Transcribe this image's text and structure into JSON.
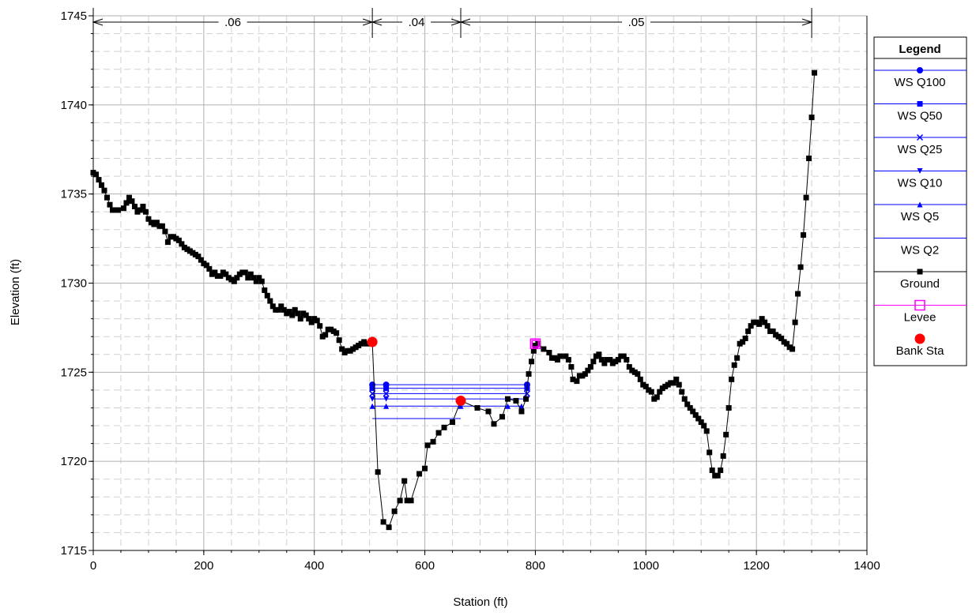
{
  "chart_data": {
    "type": "line",
    "xlabel": "Station (ft)",
    "ylabel": "Elevation (ft)",
    "xlim": [
      0,
      1400
    ],
    "ylim": [
      1715,
      1745
    ],
    "x_ticks": [
      "0",
      "200",
      "400",
      "600",
      "800",
      "1000",
      "1200",
      "1400"
    ],
    "y_ticks": [
      "1715",
      "1720",
      "1725",
      "1730",
      "1735",
      "1740",
      "1745"
    ],
    "grid": true,
    "legend_position": "right",
    "legend_title": "Legend",
    "colors": {
      "water": "#0000ff",
      "ground": "#000000",
      "levee": "#ff00ff",
      "bank": "#ff0000"
    },
    "roughness": [
      {
        "label": ".06",
        "from": 0,
        "to": 505
      },
      {
        "label": ".04",
        "from": 505,
        "to": 665
      },
      {
        "label": ".05",
        "from": 665,
        "to": 1300
      }
    ],
    "series": [
      {
        "name": "WS Q100",
        "marker": "circle",
        "elevation": 1724.3,
        "x": [
          505,
          530,
          785
        ]
      },
      {
        "name": "WS Q50",
        "marker": "square",
        "elevation": 1724.1,
        "x": [
          505,
          530,
          785
        ]
      },
      {
        "name": "WS Q25",
        "marker": "x",
        "elevation": 1723.8,
        "x": [
          505,
          530,
          785
        ]
      },
      {
        "name": "WS Q10",
        "marker": "triangle-down",
        "elevation": 1723.5,
        "x": [
          505,
          530,
          785
        ]
      },
      {
        "name": "WS Q5",
        "marker": "triangle-up",
        "elevation": 1723.1,
        "x": [
          505,
          530,
          665,
          750,
          775
        ]
      },
      {
        "name": "WS Q2",
        "marker": "none",
        "elevation": 1722.4,
        "x": [
          505,
          665
        ]
      },
      {
        "name": "Ground",
        "marker": "square",
        "points": [
          [
            0,
            1736.2
          ],
          [
            5,
            1736.1
          ],
          [
            10,
            1735.8
          ],
          [
            15,
            1735.5
          ],
          [
            20,
            1735.2
          ],
          [
            25,
            1734.8
          ],
          [
            30,
            1734.4
          ],
          [
            35,
            1734.1
          ],
          [
            45,
            1734.1
          ],
          [
            55,
            1734.2
          ],
          [
            60,
            1734.5
          ],
          [
            65,
            1734.8
          ],
          [
            70,
            1734.6
          ],
          [
            75,
            1734.3
          ],
          [
            80,
            1734.0
          ],
          [
            85,
            1734.1
          ],
          [
            90,
            1734.3
          ],
          [
            95,
            1734.0
          ],
          [
            100,
            1733.6
          ],
          [
            105,
            1733.4
          ],
          [
            110,
            1733.3
          ],
          [
            115,
            1733.4
          ],
          [
            120,
            1733.2
          ],
          [
            125,
            1733.2
          ],
          [
            130,
            1732.9
          ],
          [
            135,
            1732.3
          ],
          [
            140,
            1732.6
          ],
          [
            145,
            1732.6
          ],
          [
            150,
            1732.5
          ],
          [
            155,
            1732.4
          ],
          [
            160,
            1732.2
          ],
          [
            165,
            1732.0
          ],
          [
            170,
            1731.9
          ],
          [
            175,
            1731.8
          ],
          [
            180,
            1731.7
          ],
          [
            185,
            1731.6
          ],
          [
            190,
            1731.5
          ],
          [
            195,
            1731.3
          ],
          [
            200,
            1731.1
          ],
          [
            205,
            1731.0
          ],
          [
            210,
            1730.8
          ],
          [
            215,
            1730.5
          ],
          [
            220,
            1730.6
          ],
          [
            225,
            1730.4
          ],
          [
            230,
            1730.4
          ],
          [
            235,
            1730.6
          ],
          [
            240,
            1730.5
          ],
          [
            245,
            1730.3
          ],
          [
            250,
            1730.2
          ],
          [
            255,
            1730.1
          ],
          [
            260,
            1730.3
          ],
          [
            265,
            1730.5
          ],
          [
            270,
            1730.6
          ],
          [
            275,
            1730.6
          ],
          [
            280,
            1730.3
          ],
          [
            285,
            1730.5
          ],
          [
            290,
            1730.3
          ],
          [
            295,
            1730.1
          ],
          [
            300,
            1730.3
          ],
          [
            305,
            1730.1
          ],
          [
            310,
            1729.6
          ],
          [
            315,
            1729.3
          ],
          [
            320,
            1729.0
          ],
          [
            325,
            1728.7
          ],
          [
            330,
            1728.5
          ],
          [
            335,
            1728.5
          ],
          [
            340,
            1728.7
          ],
          [
            345,
            1728.5
          ],
          [
            350,
            1728.3
          ],
          [
            355,
            1728.4
          ],
          [
            360,
            1728.2
          ],
          [
            365,
            1728.5
          ],
          [
            370,
            1728.3
          ],
          [
            375,
            1728.0
          ],
          [
            380,
            1728.3
          ],
          [
            385,
            1728.2
          ],
          [
            390,
            1728.0
          ],
          [
            395,
            1727.8
          ],
          [
            400,
            1728.0
          ],
          [
            405,
            1727.9
          ],
          [
            410,
            1727.6
          ],
          [
            415,
            1727.0
          ],
          [
            420,
            1727.1
          ],
          [
            425,
            1727.4
          ],
          [
            430,
            1727.4
          ],
          [
            435,
            1727.3
          ],
          [
            440,
            1727.2
          ],
          [
            445,
            1726.8
          ],
          [
            450,
            1726.3
          ],
          [
            455,
            1726.1
          ],
          [
            460,
            1726.2
          ],
          [
            465,
            1726.2
          ],
          [
            470,
            1726.3
          ],
          [
            475,
            1726.4
          ],
          [
            480,
            1726.5
          ],
          [
            485,
            1726.6
          ],
          [
            490,
            1726.7
          ],
          [
            495,
            1726.6
          ],
          [
            505,
            1726.7
          ],
          [
            515,
            1719.4
          ],
          [
            525,
            1716.6
          ],
          [
            535,
            1716.3
          ],
          [
            545,
            1717.2
          ],
          [
            555,
            1717.8
          ],
          [
            563,
            1718.9
          ],
          [
            568,
            1717.8
          ],
          [
            575,
            1717.8
          ],
          [
            590,
            1719.3
          ],
          [
            600,
            1719.6
          ],
          [
            605,
            1720.9
          ],
          [
            615,
            1721.1
          ],
          [
            625,
            1721.6
          ],
          [
            635,
            1721.9
          ],
          [
            650,
            1722.2
          ],
          [
            665,
            1723.4
          ],
          [
            695,
            1723.0
          ],
          [
            715,
            1722.8
          ],
          [
            725,
            1722.1
          ],
          [
            740,
            1722.5
          ],
          [
            750,
            1723.5
          ],
          [
            765,
            1723.4
          ],
          [
            775,
            1722.8
          ],
          [
            783,
            1723.5
          ],
          [
            788,
            1724.9
          ],
          [
            793,
            1725.6
          ],
          [
            797,
            1726.2
          ],
          [
            800,
            1726.5
          ],
          [
            805,
            1726.6
          ],
          [
            815,
            1726.3
          ],
          [
            825,
            1726.1
          ],
          [
            830,
            1725.8
          ],
          [
            835,
            1725.8
          ],
          [
            840,
            1725.7
          ],
          [
            845,
            1725.9
          ],
          [
            855,
            1725.9
          ],
          [
            860,
            1725.7
          ],
          [
            865,
            1725.3
          ],
          [
            868,
            1724.6
          ],
          [
            875,
            1724.5
          ],
          [
            880,
            1724.8
          ],
          [
            885,
            1724.8
          ],
          [
            890,
            1724.9
          ],
          [
            895,
            1725.1
          ],
          [
            900,
            1725.3
          ],
          [
            905,
            1725.6
          ],
          [
            910,
            1725.9
          ],
          [
            915,
            1726.0
          ],
          [
            920,
            1725.7
          ],
          [
            925,
            1725.5
          ],
          [
            930,
            1725.7
          ],
          [
            935,
            1725.7
          ],
          [
            940,
            1725.5
          ],
          [
            945,
            1725.6
          ],
          [
            950,
            1725.7
          ],
          [
            955,
            1725.9
          ],
          [
            960,
            1725.9
          ],
          [
            965,
            1725.7
          ],
          [
            970,
            1725.3
          ],
          [
            975,
            1725.1
          ],
          [
            980,
            1725.0
          ],
          [
            985,
            1724.9
          ],
          [
            990,
            1724.6
          ],
          [
            995,
            1724.3
          ],
          [
            1000,
            1724.2
          ],
          [
            1005,
            1724.0
          ],
          [
            1010,
            1723.9
          ],
          [
            1015,
            1723.5
          ],
          [
            1020,
            1723.6
          ],
          [
            1025,
            1723.9
          ],
          [
            1030,
            1724.1
          ],
          [
            1035,
            1724.2
          ],
          [
            1040,
            1724.3
          ],
          [
            1045,
            1724.4
          ],
          [
            1050,
            1724.4
          ],
          [
            1055,
            1724.6
          ],
          [
            1060,
            1724.3
          ],
          [
            1065,
            1723.9
          ],
          [
            1070,
            1723.5
          ],
          [
            1075,
            1723.2
          ],
          [
            1080,
            1723.0
          ],
          [
            1085,
            1722.8
          ],
          [
            1090,
            1722.6
          ],
          [
            1095,
            1722.4
          ],
          [
            1100,
            1722.2
          ],
          [
            1105,
            1722.0
          ],
          [
            1110,
            1721.7
          ],
          [
            1115,
            1720.5
          ],
          [
            1120,
            1719.5
          ],
          [
            1125,
            1719.2
          ],
          [
            1130,
            1719.2
          ],
          [
            1135,
            1719.5
          ],
          [
            1140,
            1720.3
          ],
          [
            1145,
            1721.5
          ],
          [
            1150,
            1723.0
          ],
          [
            1155,
            1724.6
          ],
          [
            1160,
            1725.4
          ],
          [
            1165,
            1725.8
          ],
          [
            1170,
            1726.6
          ],
          [
            1175,
            1726.7
          ],
          [
            1180,
            1726.9
          ],
          [
            1185,
            1727.3
          ],
          [
            1190,
            1727.6
          ],
          [
            1195,
            1727.8
          ],
          [
            1200,
            1727.8
          ],
          [
            1205,
            1727.7
          ],
          [
            1210,
            1728.0
          ],
          [
            1215,
            1727.8
          ],
          [
            1220,
            1727.6
          ],
          [
            1225,
            1727.3
          ],
          [
            1230,
            1727.3
          ],
          [
            1235,
            1727.1
          ],
          [
            1240,
            1727.0
          ],
          [
            1245,
            1726.9
          ],
          [
            1250,
            1726.7
          ],
          [
            1255,
            1726.6
          ],
          [
            1260,
            1726.4
          ],
          [
            1265,
            1726.3
          ],
          [
            1270,
            1727.8
          ],
          [
            1275,
            1729.4
          ],
          [
            1280,
            1730.9
          ],
          [
            1285,
            1732.7
          ],
          [
            1290,
            1734.8
          ],
          [
            1295,
            1737.0
          ],
          [
            1300,
            1739.3
          ],
          [
            1305,
            1741.8
          ]
        ]
      },
      {
        "name": "Levee",
        "marker": "square-open",
        "points": [
          [
            800,
            1726.6
          ]
        ]
      },
      {
        "name": "Bank Sta",
        "marker": "circle-filled",
        "points": [
          [
            505,
            1726.7
          ],
          [
            665,
            1723.4
          ]
        ]
      }
    ]
  }
}
